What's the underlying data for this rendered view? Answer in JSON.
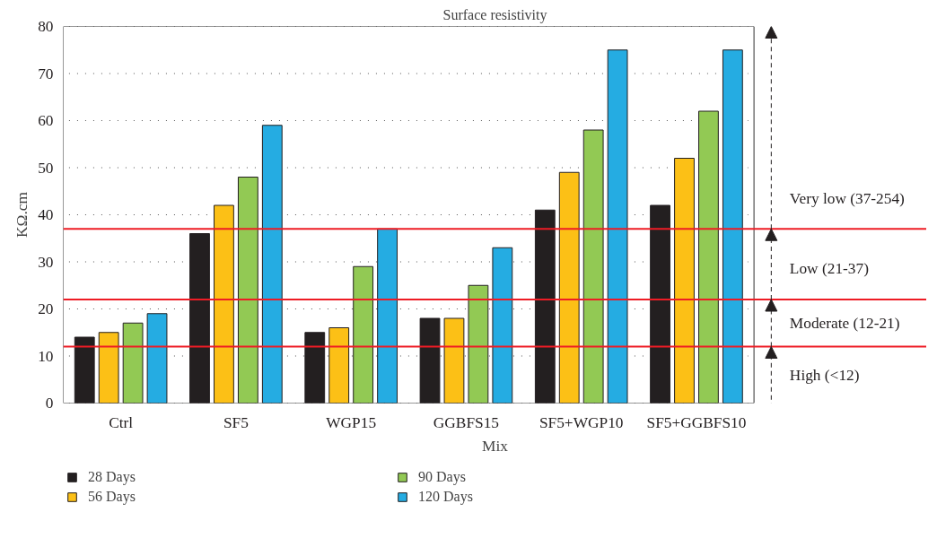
{
  "chart_data": {
    "type": "bar",
    "title": "Surface resistivity",
    "xlabel": "Mix",
    "ylabel": "KΩ.cm",
    "categories": [
      "Ctrl",
      "SF5",
      "WGP15",
      "GGBFS15",
      "SF5+WGP10",
      "SF5+GGBFS10"
    ],
    "series": [
      {
        "name": "28 Days",
        "color": "#231f20",
        "values": [
          14,
          36,
          15,
          18,
          41,
          42
        ]
      },
      {
        "name": "56 Days",
        "color": "#fcc016",
        "values": [
          15,
          42,
          16,
          18,
          49,
          52
        ]
      },
      {
        "name": "90 Days",
        "color": "#92c954",
        "values": [
          17,
          48,
          29,
          25,
          58,
          62
        ]
      },
      {
        "name": "120 Days",
        "color": "#25ace2",
        "values": [
          19,
          59,
          37,
          33,
          75,
          75
        ]
      }
    ],
    "ylim": [
      0,
      80
    ],
    "yticks": [
      0,
      10,
      20,
      30,
      40,
      50,
      60,
      70,
      80
    ],
    "grid": "y",
    "legend": "bottom",
    "ref_lines": [
      {
        "axis": "y",
        "value": 37,
        "color": "#ee1c25"
      },
      {
        "axis": "y",
        "value": 22,
        "color": "#ee1c25"
      },
      {
        "axis": "y",
        "value": 12,
        "color": "#ee1c25"
      }
    ],
    "annotations": [
      "Very low (37-254)",
      "Low (21-37)",
      "Moderate (12-21)",
      "High (<12)"
    ]
  }
}
